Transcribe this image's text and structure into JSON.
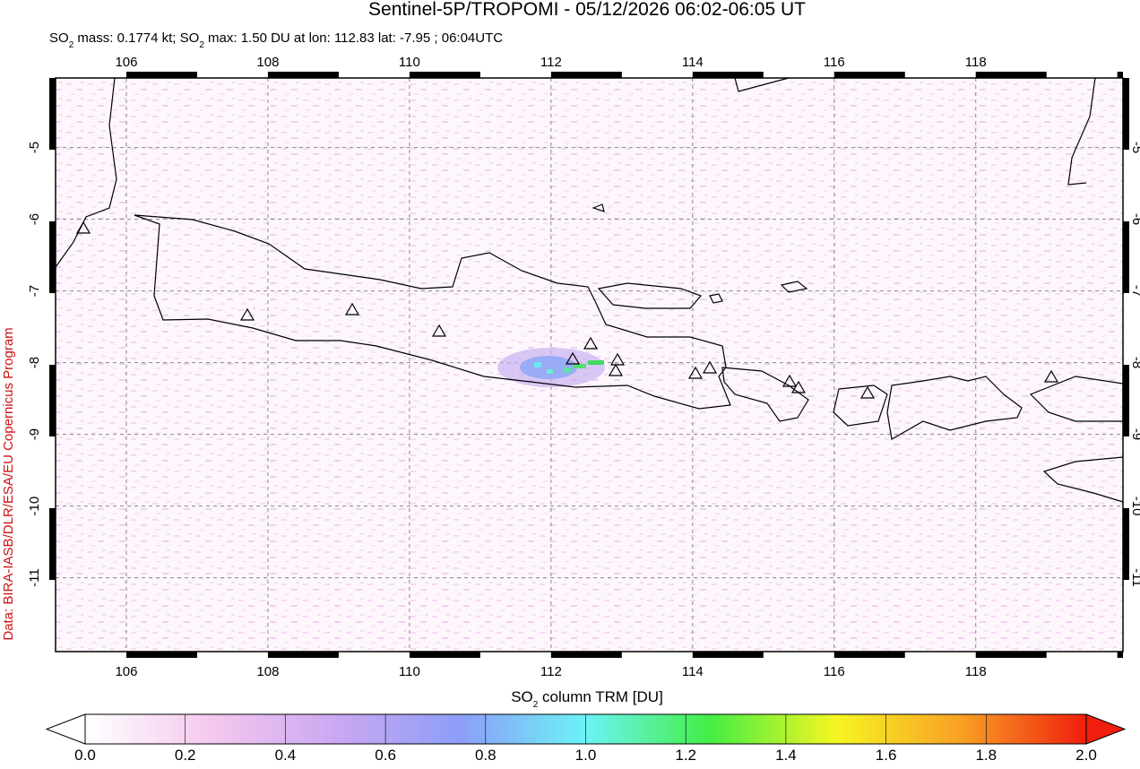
{
  "chart_data": {
    "type": "map",
    "title": "Sentinel-5P/TROPOMI - 05/12/2026 06:02-06:05 UT",
    "subtitle_parts": [
      "SO",
      "2",
      " mass: 0.1774 kt; SO",
      "2",
      " max: 1.50 DU at lon: 112.83 lat: -7.95 ; 06:04UTC"
    ],
    "side_note": "Data: BIRA-IASB/DLR/ESA/EU Copernicus Program",
    "xlim": [
      105,
      120.08
    ],
    "ylim": [
      -12.03,
      -4.03
    ],
    "xticks": [
      106,
      108,
      110,
      112,
      114,
      116,
      118
    ],
    "yticks": [
      -5,
      -6,
      -7,
      -8,
      -9,
      -10,
      -11
    ],
    "grid": true,
    "colorbar": {
      "label_parts": [
        "SO",
        "2",
        " column TRM [DU]"
      ],
      "range": [
        0,
        2
      ],
      "ticks": [
        {
          "value": 0,
          "label": "0.0"
        },
        {
          "value": 0.2,
          "label": "0.2"
        },
        {
          "value": 0.4,
          "label": "0.4"
        },
        {
          "value": 0.6,
          "label": "0.6"
        },
        {
          "value": 0.8,
          "label": "0.8"
        },
        {
          "value": 1,
          "label": "1.0"
        },
        {
          "value": 1.2,
          "label": "1.2"
        },
        {
          "value": 1.4,
          "label": "1.4"
        },
        {
          "value": 1.6,
          "label": "1.6"
        },
        {
          "value": 1.8,
          "label": "1.8"
        },
        {
          "value": 2,
          "label": "2.0"
        }
      ],
      "colors": [
        "#ffffff",
        "#f4c8ee",
        "#cba8f2",
        "#8c9ef8",
        "#6cf2f6",
        "#44ee44",
        "#f6f622",
        "#f8a024",
        "#f01e0e"
      ]
    }
  }
}
